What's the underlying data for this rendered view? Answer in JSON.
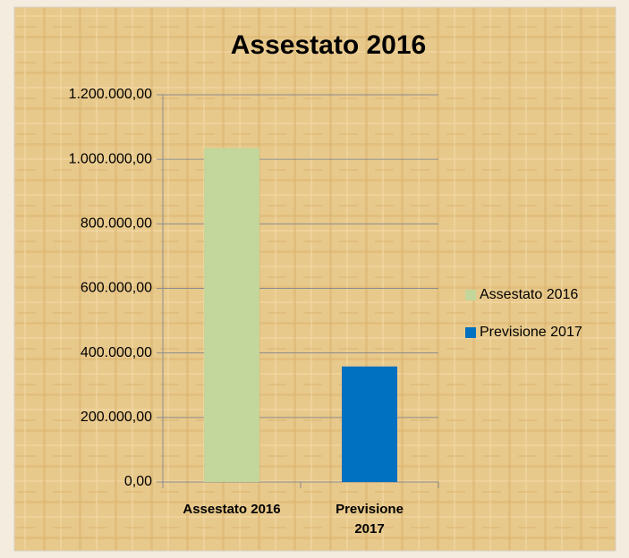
{
  "chart_data": {
    "type": "bar",
    "title": "Assestato 2016",
    "categories": [
      "Assestato 2016",
      "Previsione 2017"
    ],
    "values": [
      1035000,
      358000
    ],
    "colors": [
      "#c3d69b",
      "#0070c0"
    ],
    "ylim": [
      0,
      1200000
    ],
    "yticks": [
      {
        "value": 0,
        "label": "0,00"
      },
      {
        "value": 200000,
        "label": "200.000,00"
      },
      {
        "value": 400000,
        "label": "400.000,00"
      },
      {
        "value": 600000,
        "label": "600.000,00"
      },
      {
        "value": 800000,
        "label": "800.000,00"
      },
      {
        "value": 1000000,
        "label": "1.000.000,00"
      },
      {
        "value": 1200000,
        "label": "1.200.000,00"
      }
    ],
    "grid": true,
    "legend": "right"
  }
}
